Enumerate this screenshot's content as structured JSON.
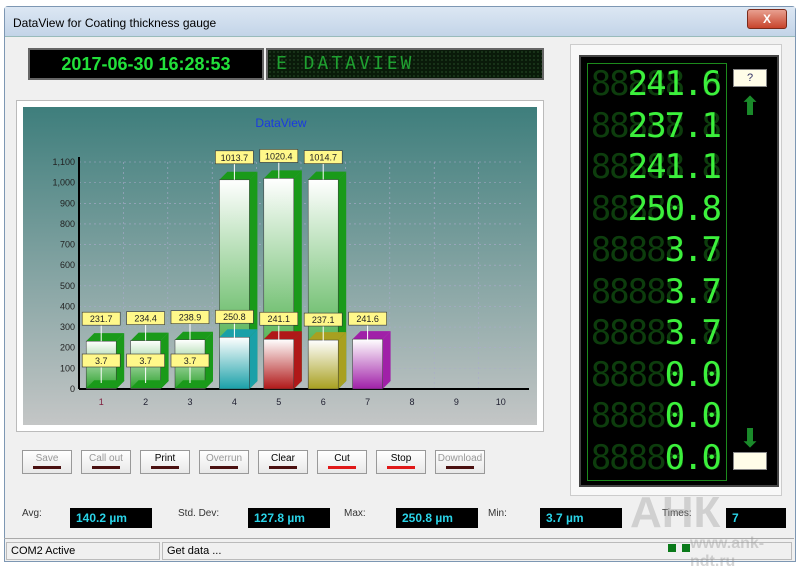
{
  "window": {
    "title": "DataView for Coating thickness gauge",
    "close": "X"
  },
  "header": {
    "datetime": "2017-06-30 16:28:53",
    "marquee": "E DATAVIEW"
  },
  "chart_data": {
    "type": "bar",
    "title": "DataView",
    "categories": [
      "1",
      "2",
      "3",
      "4",
      "5",
      "6",
      "7",
      "8",
      "9",
      "10"
    ],
    "series": [
      {
        "values": [
          231.7,
          234.4,
          238.9,
          1013.7,
          1020.4,
          1014.7,
          null,
          null,
          null,
          null
        ]
      },
      {
        "values": [
          3.7,
          3.7,
          3.7,
          250.8,
          241.1,
          237.1,
          241.6,
          null,
          null,
          null
        ]
      }
    ],
    "ylim": [
      0,
      1100
    ],
    "yticks": [
      "0",
      "100",
      "200",
      "300",
      "400",
      "500",
      "600",
      "700",
      "800",
      "900",
      "1,000",
      "1,100"
    ],
    "grid": true,
    "colors": {
      "back": "#1a9a1a",
      "front": [
        "#1a9a1a",
        "#1a9a1a",
        "#1a9a1a",
        "#1aa0a8",
        "#b01818",
        "#a8a020",
        "#a020a8"
      ]
    }
  },
  "led": {
    "values": [
      "241.6",
      "237.1",
      "241.1",
      "250.8",
      "3.7",
      "3.7",
      "3.7",
      "0.0",
      "0.0",
      "0.0"
    ],
    "top_box": "?",
    "bottom_box": ""
  },
  "buttons": [
    {
      "label": "Save",
      "enabled": false
    },
    {
      "label": "Call out",
      "enabled": false
    },
    {
      "label": "Print",
      "enabled": true
    },
    {
      "label": "Overrun",
      "enabled": false
    },
    {
      "label": "Clear",
      "enabled": true
    },
    {
      "label": "Cut",
      "enabled": true,
      "red": true
    },
    {
      "label": "Stop",
      "enabled": true,
      "red": true
    },
    {
      "label": "Download",
      "enabled": false
    }
  ],
  "stats": {
    "avg_label": "Avg:",
    "avg": "140.2 µm",
    "std_label": "Std. Dev:",
    "std": "127.8 µm",
    "max_label": "Max:",
    "max": "250.8 µm",
    "min_label": "Min:",
    "min": "3.7 µm",
    "times_label": "Times:",
    "times": "7"
  },
  "status": {
    "port": "COM2 Active",
    "message": "Get data ..."
  },
  "watermark": {
    "logo": "АНК",
    "url": "www.ank-ndt.ru"
  }
}
